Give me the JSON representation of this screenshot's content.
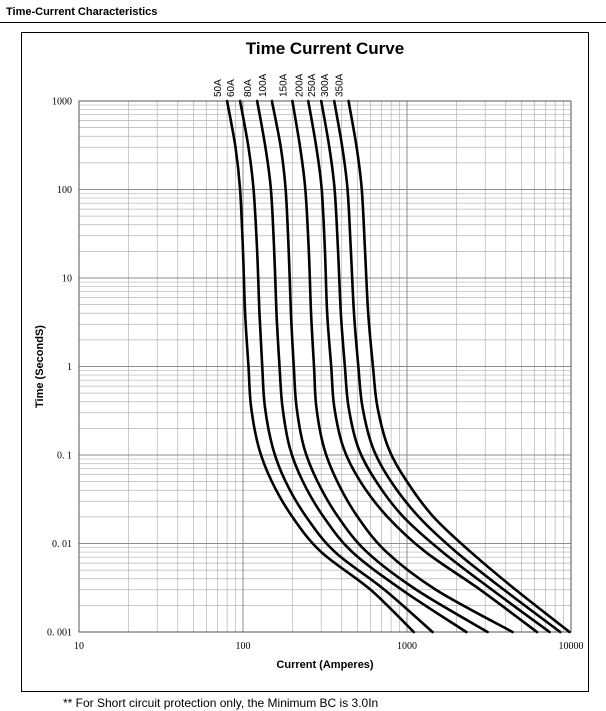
{
  "section_title": "Time-Current Characteristics",
  "footnote": "** For Short circuit protection only, the Minimum BC is 3.0In",
  "chart_data": {
    "type": "line",
    "title": "Time Current Curve",
    "xlabel": "Current  (Amperes)",
    "ylabel": "Time (SecondS)",
    "x_scale": "log",
    "y_scale": "log",
    "xlim": [
      10,
      10000
    ],
    "ylim": [
      0.001,
      1000
    ],
    "x_tick_labels": [
      "10",
      "100",
      "1000",
      "10000"
    ],
    "y_tick_labels": [
      "1000",
      "100",
      "10",
      "1",
      "0. 1",
      "0. 01",
      "0. 001"
    ],
    "grid": true,
    "series": [
      {
        "name": "50A",
        "points": [
          [
            80,
            1000
          ],
          [
            90,
            300
          ],
          [
            96,
            100
          ],
          [
            100,
            20
          ],
          [
            103,
            4
          ],
          [
            108,
            1
          ],
          [
            112,
            0.35
          ],
          [
            125,
            0.12
          ],
          [
            150,
            0.05
          ],
          [
            200,
            0.02
          ],
          [
            300,
            0.008
          ],
          [
            600,
            0.003
          ],
          [
            1100,
            0.001
          ]
        ]
      },
      {
        "name": "60A",
        "points": [
          [
            96,
            1000
          ],
          [
            108,
            300
          ],
          [
            116,
            100
          ],
          [
            122,
            20
          ],
          [
            126,
            4
          ],
          [
            131,
            1
          ],
          [
            136,
            0.35
          ],
          [
            152,
            0.12
          ],
          [
            182,
            0.05
          ],
          [
            243,
            0.02
          ],
          [
            364,
            0.008
          ],
          [
            729,
            0.003
          ],
          [
            1430,
            0.001
          ]
        ]
      },
      {
        "name": "80A",
        "points": [
          [
            122,
            1000
          ],
          [
            137,
            300
          ],
          [
            148,
            100
          ],
          [
            155,
            20
          ],
          [
            160,
            4
          ],
          [
            167,
            1
          ],
          [
            174,
            0.35
          ],
          [
            193,
            0.12
          ],
          [
            232,
            0.05
          ],
          [
            310,
            0.02
          ],
          [
            464,
            0.008
          ],
          [
            930,
            0.003
          ],
          [
            2300,
            0.001
          ]
        ]
      },
      {
        "name": "100A",
        "points": [
          [
            150,
            1000
          ],
          [
            170,
            300
          ],
          [
            182,
            100
          ],
          [
            190,
            20
          ],
          [
            196,
            4
          ],
          [
            204,
            1
          ],
          [
            212,
            0.35
          ],
          [
            236,
            0.12
          ],
          [
            285,
            0.05
          ],
          [
            380,
            0.02
          ],
          [
            570,
            0.008
          ],
          [
            1140,
            0.003
          ],
          [
            3100,
            0.001
          ]
        ]
      },
      {
        "name": "150A",
        "points": [
          [
            200,
            1000
          ],
          [
            223,
            300
          ],
          [
            240,
            100
          ],
          [
            252,
            20
          ],
          [
            260,
            4
          ],
          [
            271,
            1
          ],
          [
            280,
            0.35
          ],
          [
            312,
            0.12
          ],
          [
            376,
            0.05
          ],
          [
            500,
            0.02
          ],
          [
            750,
            0.008
          ],
          [
            1500,
            0.003
          ],
          [
            4400,
            0.001
          ]
        ]
      },
      {
        "name": "200A",
        "points": [
          [
            250,
            1000
          ],
          [
            280,
            300
          ],
          [
            302,
            100
          ],
          [
            316,
            20
          ],
          [
            326,
            4
          ],
          [
            345,
            1
          ],
          [
            360,
            0.35
          ],
          [
            410,
            0.12
          ],
          [
            520,
            0.05
          ],
          [
            760,
            0.02
          ],
          [
            1300,
            0.008
          ],
          [
            2800,
            0.003
          ],
          [
            6200,
            0.001
          ]
        ]
      },
      {
        "name": "250A",
        "points": [
          [
            300,
            1000
          ],
          [
            336,
            300
          ],
          [
            362,
            100
          ],
          [
            380,
            20
          ],
          [
            395,
            4
          ],
          [
            418,
            1
          ],
          [
            440,
            0.35
          ],
          [
            505,
            0.12
          ],
          [
            650,
            0.05
          ],
          [
            950,
            0.02
          ],
          [
            1650,
            0.008
          ],
          [
            3300,
            0.003
          ],
          [
            7400,
            0.001
          ]
        ]
      },
      {
        "name": "300A",
        "points": [
          [
            360,
            1000
          ],
          [
            403,
            300
          ],
          [
            434,
            100
          ],
          [
            455,
            20
          ],
          [
            475,
            4
          ],
          [
            505,
            1
          ],
          [
            535,
            0.35
          ],
          [
            620,
            0.12
          ],
          [
            800,
            0.05
          ],
          [
            1180,
            0.02
          ],
          [
            2000,
            0.008
          ],
          [
            3900,
            0.003
          ],
          [
            8600,
            0.001
          ]
        ]
      },
      {
        "name": "350A",
        "points": [
          [
            440,
            1000
          ],
          [
            493,
            300
          ],
          [
            530,
            100
          ],
          [
            555,
            20
          ],
          [
            580,
            4
          ],
          [
            620,
            1
          ],
          [
            660,
            0.35
          ],
          [
            770,
            0.12
          ],
          [
            1000,
            0.05
          ],
          [
            1450,
            0.02
          ],
          [
            2450,
            0.008
          ],
          [
            4600,
            0.003
          ],
          [
            9800,
            0.001
          ]
        ]
      }
    ]
  }
}
